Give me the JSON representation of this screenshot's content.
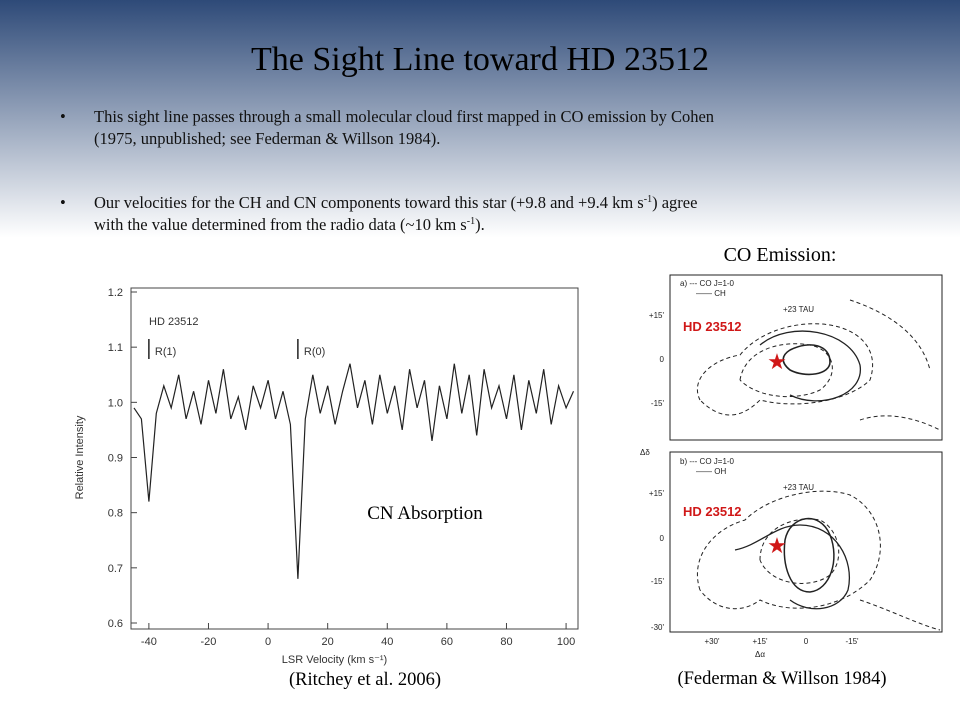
{
  "slide": {
    "title": "The Sight Line toward HD 23512",
    "bullets": [
      [
        [
          "This sight line passes through a small molecular cloud first mapped in CO emission by Cohen"
        ],
        [
          "(1975, unpublished; see Federman & Willson 1984)."
        ]
      ],
      [
        [
          "Our velocities for the CH and CN components toward this star (+9.8 and +9.4 km s",
          "-1",
          ") agree"
        ],
        [
          "with the value determined from the radio data (~10 km s",
          "-1",
          ")."
        ]
      ]
    ],
    "co_label": "CO Emission:",
    "cn_label": "CN Absorption",
    "credit_left": "(Ritchey et al. 2006)",
    "credit_right": "(Federman & Willson 1984)"
  },
  "maps": {
    "panel_a": {
      "legend": [
        "a) --- CO J=1-0",
        "—— CH"
      ],
      "marker": "+23 TAU",
      "star_label": "HD 23512",
      "yticks": [
        "+15'",
        "0",
        "-15'"
      ]
    },
    "panel_b": {
      "legend": [
        "b) --- CO J=1-0",
        "—— OH"
      ],
      "marker": "+23 TAU",
      "star_label": "HD 23512",
      "yticks": [
        "+15'",
        "0",
        "-15'",
        "-30'"
      ],
      "xticks": [
        "+30'",
        "+15'",
        "0",
        "-15'"
      ]
    },
    "ylabel": "Δδ",
    "xlabel": "Δα"
  },
  "chart_data": {
    "type": "line",
    "title": "HD 23512",
    "annotations": [
      {
        "x": -40,
        "label": "R(1)"
      },
      {
        "x": 10,
        "label": "R(0)"
      }
    ],
    "xlabel": "LSR Velocity (km s⁻¹)",
    "ylabel": "Relative Intensity",
    "x": [
      -45,
      -42.5,
      -40,
      -37.5,
      -35,
      -32.5,
      -30,
      -27.5,
      -25,
      -22.5,
      -20,
      -17.5,
      -15,
      -12.5,
      -10,
      -7.5,
      -5,
      -2.5,
      0,
      2.5,
      5,
      7.5,
      10,
      12.5,
      15,
      17.5,
      20,
      22.5,
      25,
      27.5,
      30,
      32.5,
      35,
      37.5,
      40,
      42.5,
      45,
      47.5,
      50,
      52.5,
      55,
      57.5,
      60,
      62.5,
      65,
      67.5,
      70,
      72.5,
      75,
      77.5,
      80,
      82.5,
      85,
      87.5,
      90,
      92.5,
      95,
      97.5,
      100,
      102.5
    ],
    "values": [
      0.99,
      0.97,
      0.82,
      0.98,
      1.03,
      0.99,
      1.05,
      0.97,
      1.02,
      0.96,
      1.04,
      0.98,
      1.06,
      0.97,
      1.01,
      0.95,
      1.03,
      0.99,
      1.04,
      0.97,
      1.02,
      0.96,
      0.68,
      0.97,
      1.05,
      0.98,
      1.03,
      0.96,
      1.02,
      1.07,
      0.99,
      1.04,
      0.96,
      1.05,
      0.98,
      1.03,
      0.95,
      1.06,
      0.99,
      1.04,
      0.93,
      1.03,
      0.97,
      1.07,
      0.98,
      1.05,
      0.94,
      1.06,
      0.99,
      1.03,
      0.97,
      1.05,
      0.95,
      1.04,
      0.98,
      1.06,
      0.96,
      1.03,
      0.99,
      1.02
    ],
    "color": "#222222",
    "xlim": [
      -46,
      104
    ],
    "ylim": [
      0.6,
      1.2
    ],
    "xticks": [
      -40,
      -20,
      0,
      20,
      40,
      60,
      80,
      100
    ],
    "yticks": [
      0.6,
      0.7,
      0.8,
      0.9,
      {
        "value": 1,
        "label": "1.0"
      },
      1.1,
      1.2
    ]
  }
}
